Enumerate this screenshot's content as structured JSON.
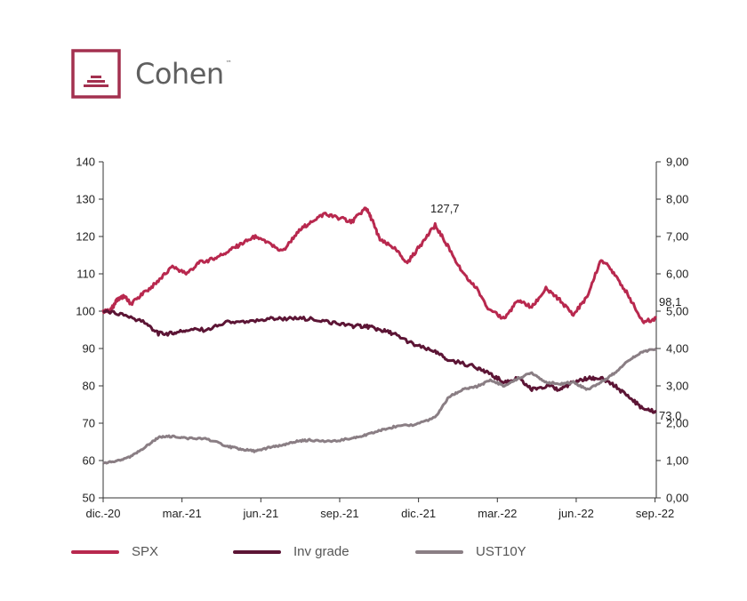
{
  "brand": {
    "name": "Cohen",
    "tm": "™",
    "color": "#a3304f"
  },
  "chart_data": {
    "type": "line",
    "x_labels": [
      "dic.-20",
      "mar.-21",
      "jun.-21",
      "sep.-21",
      "dic.-21",
      "mar.-22",
      "jun.-22",
      "sep.-22"
    ],
    "left_axis": {
      "range": [
        50,
        140
      ],
      "ticks": [
        "50",
        "60",
        "70",
        "80",
        "90",
        "100",
        "110",
        "120",
        "130",
        "140"
      ]
    },
    "right_axis": {
      "range": [
        0,
        9
      ],
      "ticks": [
        "0,00",
        "1,00",
        "2,00",
        "3,00",
        "4,00",
        "5,00",
        "6,00",
        "7,00",
        "8,00",
        "9,00"
      ]
    },
    "series": [
      {
        "name": "SPX",
        "axis": "left",
        "color": "#b8284e",
        "points": [
          [
            0,
            100
          ],
          [
            0.17,
            100
          ],
          [
            0.33,
            103
          ],
          [
            0.5,
            104
          ],
          [
            0.67,
            102
          ],
          [
            1,
            105
          ],
          [
            1.33,
            108
          ],
          [
            1.67,
            112
          ],
          [
            2,
            110
          ],
          [
            2.33,
            113
          ],
          [
            2.67,
            114
          ],
          [
            3,
            116
          ],
          [
            3.33,
            118
          ],
          [
            3.67,
            120
          ],
          [
            4,
            118
          ],
          [
            4.33,
            116
          ],
          [
            4.67,
            121
          ],
          [
            5,
            124
          ],
          [
            5.33,
            126
          ],
          [
            5.67,
            125
          ],
          [
            6,
            124
          ],
          [
            6.33,
            127.7
          ],
          [
            6.5,
            124
          ],
          [
            6.67,
            119
          ],
          [
            7,
            117
          ],
          [
            7.33,
            113
          ],
          [
            7.67,
            118
          ],
          [
            8,
            123
          ],
          [
            8.33,
            117
          ],
          [
            8.67,
            110
          ],
          [
            9,
            106
          ],
          [
            9.33,
            100
          ],
          [
            9.67,
            98
          ],
          [
            10,
            103
          ],
          [
            10.33,
            101
          ],
          [
            10.67,
            106
          ],
          [
            11,
            103
          ],
          [
            11.33,
            99
          ],
          [
            11.67,
            104
          ],
          [
            12,
            114
          ],
          [
            12.33,
            110
          ],
          [
            12.67,
            104
          ],
          [
            13,
            97
          ],
          [
            13.33,
            98.1
          ]
        ]
      },
      {
        "name": "Inv grade",
        "axis": "left",
        "color": "#5c1535",
        "points": [
          [
            0,
            100
          ],
          [
            0.5,
            99
          ],
          [
            1,
            97
          ],
          [
            1.33,
            94
          ],
          [
            1.67,
            94
          ],
          [
            2,
            95
          ],
          [
            2.5,
            95
          ],
          [
            3,
            97
          ],
          [
            3.5,
            97
          ],
          [
            4,
            98
          ],
          [
            4.5,
            98
          ],
          [
            5,
            98
          ],
          [
            5.5,
            97
          ],
          [
            6,
            96
          ],
          [
            6.33,
            96
          ],
          [
            6.67,
            95
          ],
          [
            7,
            94
          ],
          [
            7.5,
            91
          ],
          [
            8,
            89
          ],
          [
            8.33,
            87
          ],
          [
            9,
            85
          ],
          [
            9.33,
            83
          ],
          [
            9.67,
            81
          ],
          [
            10,
            82
          ],
          [
            10.33,
            79
          ],
          [
            10.67,
            80
          ],
          [
            11,
            79
          ],
          [
            11.33,
            81
          ],
          [
            11.67,
            82
          ],
          [
            12,
            82
          ],
          [
            12.33,
            80
          ],
          [
            12.67,
            77
          ],
          [
            13,
            74
          ],
          [
            13.33,
            73.0
          ]
        ]
      },
      {
        "name": "UST10Y",
        "axis": "right",
        "color": "#8a7e84",
        "points": [
          [
            0,
            0.93
          ],
          [
            0.33,
            0.98
          ],
          [
            0.67,
            1.1
          ],
          [
            1,
            1.35
          ],
          [
            1.33,
            1.62
          ],
          [
            1.67,
            1.65
          ],
          [
            2,
            1.6
          ],
          [
            2.5,
            1.58
          ],
          [
            3,
            1.38
          ],
          [
            3.33,
            1.3
          ],
          [
            3.67,
            1.25
          ],
          [
            4,
            1.35
          ],
          [
            4.33,
            1.4
          ],
          [
            4.67,
            1.52
          ],
          [
            5,
            1.55
          ],
          [
            5.5,
            1.5
          ],
          [
            6,
            1.6
          ],
          [
            6.33,
            1.68
          ],
          [
            6.67,
            1.8
          ],
          [
            7,
            1.9
          ],
          [
            7.5,
            1.96
          ],
          [
            8,
            2.15
          ],
          [
            8.33,
            2.7
          ],
          [
            8.67,
            2.9
          ],
          [
            9,
            2.98
          ],
          [
            9.33,
            3.15
          ],
          [
            9.67,
            3.0
          ],
          [
            10,
            3.2
          ],
          [
            10.33,
            3.35
          ],
          [
            10.67,
            3.1
          ],
          [
            11,
            3.05
          ],
          [
            11.33,
            3.1
          ],
          [
            11.67,
            2.9
          ],
          [
            12,
            3.1
          ],
          [
            12.33,
            3.35
          ],
          [
            12.67,
            3.7
          ],
          [
            13,
            3.9
          ],
          [
            13.33,
            4.0
          ]
        ]
      }
    ],
    "annotations": [
      "127,7",
      "98,1",
      "73,0"
    ],
    "legend_position": "bottom",
    "grid": false
  }
}
